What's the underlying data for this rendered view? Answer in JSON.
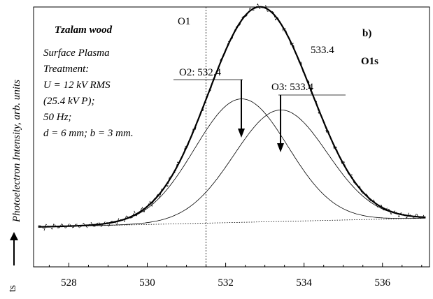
{
  "chart_data": {
    "type": "line",
    "title": "",
    "xlabel": "",
    "ylabel": "Photoelectron Intensity, arb. units",
    "ylabel_cut": "ts",
    "xlim": [
      527.1,
      537.2
    ],
    "ylim": [
      0,
      1
    ],
    "x_ticks": [
      528,
      530,
      532,
      534,
      536
    ],
    "grid": false,
    "legend": "none",
    "panel_label": "b)",
    "core_level": "O1s",
    "sample": "Tzalam wood",
    "treatment_lines": [
      "Surface Plasma",
      "Treatment:",
      "U = 12 kV RMS",
      "(25.4 kV P);",
      "50 Hz;",
      "d = 6 mm; b = 3 mm."
    ],
    "peaks": [
      {
        "label": "O1",
        "position": 531.5,
        "amplitude": 0,
        "fwhm": 0
      },
      {
        "label": "O2: 532.4",
        "position": 532.4,
        "amplitude": 0.62,
        "fwhm": 2.8
      },
      {
        "label": "O3: 533.4",
        "position": 533.4,
        "amplitude": 0.56,
        "fwhm": 2.8
      }
    ],
    "extra_annotation": "533.4",
    "background": {
      "x": [
        527.1,
        537.2
      ],
      "y": [
        0.0,
        0.045
      ]
    },
    "colors": {
      "line": "#000000",
      "background": "#ffffff"
    }
  }
}
